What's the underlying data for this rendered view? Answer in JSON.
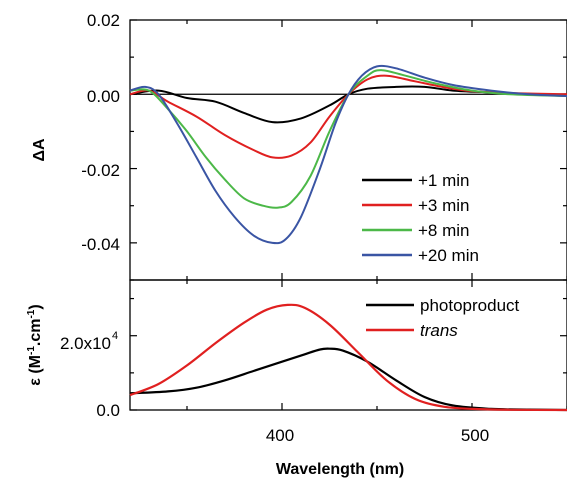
{
  "chart_data": [
    {
      "type": "line",
      "panel": "top",
      "ylabel": "ΔA",
      "xlabel": "",
      "xlim": [
        320,
        550
      ],
      "ylim": [
        -0.05,
        0.02
      ],
      "yticks": [
        0.02,
        0.0,
        -0.02,
        -0.04
      ],
      "ytick_labels": [
        "0.02",
        "0.00",
        "-0.02",
        "-0.04"
      ],
      "grid": false,
      "zero_line": true,
      "legend_position": "bottom-right",
      "series": [
        {
          "name": "+1 min",
          "color": "#000000",
          "points": [
            [
              320,
              0.0
            ],
            [
              335,
              0.001
            ],
            [
              350,
              -0.001
            ],
            [
              365,
              -0.002
            ],
            [
              380,
              -0.005
            ],
            [
              395,
              -0.0075
            ],
            [
              410,
              -0.0065
            ],
            [
              425,
              -0.003
            ],
            [
              435,
              0.0
            ],
            [
              445,
              0.0015
            ],
            [
              460,
              0.002
            ],
            [
              475,
              0.002
            ],
            [
              490,
              0.001
            ],
            [
              510,
              0.0005
            ],
            [
              530,
              0.0
            ],
            [
              550,
              0.0
            ]
          ]
        },
        {
          "name": "+3 min",
          "color": "#e02020",
          "points": [
            [
              320,
              0.0
            ],
            [
              330,
              0.001
            ],
            [
              340,
              -0.002
            ],
            [
              355,
              -0.006
            ],
            [
              370,
              -0.011
            ],
            [
              385,
              -0.015
            ],
            [
              395,
              -0.017
            ],
            [
              405,
              -0.0165
            ],
            [
              415,
              -0.013
            ],
            [
              425,
              -0.006
            ],
            [
              435,
              0.0
            ],
            [
              445,
              0.004
            ],
            [
              455,
              0.005
            ],
            [
              470,
              0.0035
            ],
            [
              490,
              0.0015
            ],
            [
              510,
              0.0005
            ],
            [
              550,
              0.0
            ]
          ]
        },
        {
          "name": "+8 min",
          "color": "#4cb848",
          "points": [
            [
              320,
              0.001
            ],
            [
              330,
              0.001
            ],
            [
              340,
              -0.004
            ],
            [
              350,
              -0.01
            ],
            [
              360,
              -0.017
            ],
            [
              370,
              -0.023
            ],
            [
              380,
              -0.028
            ],
            [
              390,
              -0.03
            ],
            [
              398,
              -0.0305
            ],
            [
              405,
              -0.029
            ],
            [
              415,
              -0.022
            ],
            [
              425,
              -0.01
            ],
            [
              435,
              0.0
            ],
            [
              445,
              0.005
            ],
            [
              452,
              0.0065
            ],
            [
              465,
              0.005
            ],
            [
              480,
              0.003
            ],
            [
              500,
              0.001
            ],
            [
              520,
              0.0
            ],
            [
              550,
              -0.0005
            ]
          ]
        },
        {
          "name": "+20 min",
          "color": "#3a55a4",
          "points": [
            [
              320,
              0.001
            ],
            [
              328,
              0.002
            ],
            [
              335,
              0.0
            ],
            [
              345,
              -0.008
            ],
            [
              355,
              -0.017
            ],
            [
              365,
              -0.026
            ],
            [
              375,
              -0.033
            ],
            [
              385,
              -0.038
            ],
            [
              395,
              -0.04
            ],
            [
              402,
              -0.039
            ],
            [
              410,
              -0.033
            ],
            [
              420,
              -0.02
            ],
            [
              428,
              -0.008
            ],
            [
              435,
              0.0
            ],
            [
              442,
              0.005
            ],
            [
              450,
              0.0075
            ],
            [
              460,
              0.007
            ],
            [
              475,
              0.0045
            ],
            [
              490,
              0.0025
            ],
            [
              510,
              0.001
            ],
            [
              530,
              0.0
            ],
            [
              550,
              -0.0005
            ]
          ]
        }
      ]
    },
    {
      "type": "line",
      "panel": "bottom",
      "xlabel": "Wavelength (nm)",
      "ylabel": "ε (M-1.cm-1)",
      "xlim": [
        320,
        550
      ],
      "ylim": [
        0,
        35000
      ],
      "xticks": [
        400,
        500
      ],
      "xtick_labels": [
        "400",
        "500"
      ],
      "yticks": [
        0,
        20000
      ],
      "ytick_labels": [
        "0.0",
        "2.0x10"
      ],
      "grid": false,
      "legend_position": "top-right",
      "series": [
        {
          "name": "photoproduct",
          "color": "#000000",
          "points": [
            [
              320,
              4500
            ],
            [
              340,
              5000
            ],
            [
              355,
              6000
            ],
            [
              370,
              8000
            ],
            [
              385,
              10500
            ],
            [
              400,
              13000
            ],
            [
              412,
              15000
            ],
            [
              420,
              16300
            ],
            [
              425,
              16500
            ],
            [
              432,
              16000
            ],
            [
              445,
              13000
            ],
            [
              460,
              8000
            ],
            [
              475,
              3500
            ],
            [
              490,
              1200
            ],
            [
              510,
              300
            ],
            [
              530,
              100
            ],
            [
              550,
              0
            ]
          ]
        },
        {
          "name": "trans",
          "color": "#e02020",
          "points": [
            [
              320,
              4000
            ],
            [
              335,
              7000
            ],
            [
              350,
              12000
            ],
            [
              365,
              18000
            ],
            [
              380,
              23500
            ],
            [
              392,
              27000
            ],
            [
              403,
              28300
            ],
            [
              412,
              27500
            ],
            [
              425,
              23000
            ],
            [
              440,
              15500
            ],
            [
              455,
              8000
            ],
            [
              470,
              3000
            ],
            [
              485,
              900
            ],
            [
              500,
              300
            ],
            [
              520,
              50
            ],
            [
              550,
              0
            ]
          ]
        }
      ]
    }
  ],
  "labels": {
    "top_ylabel": "ΔA",
    "bottom_ylabel_main": "ε (M",
    "bottom_ylabel_sup1": "-1",
    "bottom_ylabel_mid": ".cm",
    "bottom_ylabel_sup2": "-1",
    "bottom_ylabel_end": ")",
    "xlabel": "Wavelength (nm)",
    "bottom_ytick_exponent": "4"
  }
}
